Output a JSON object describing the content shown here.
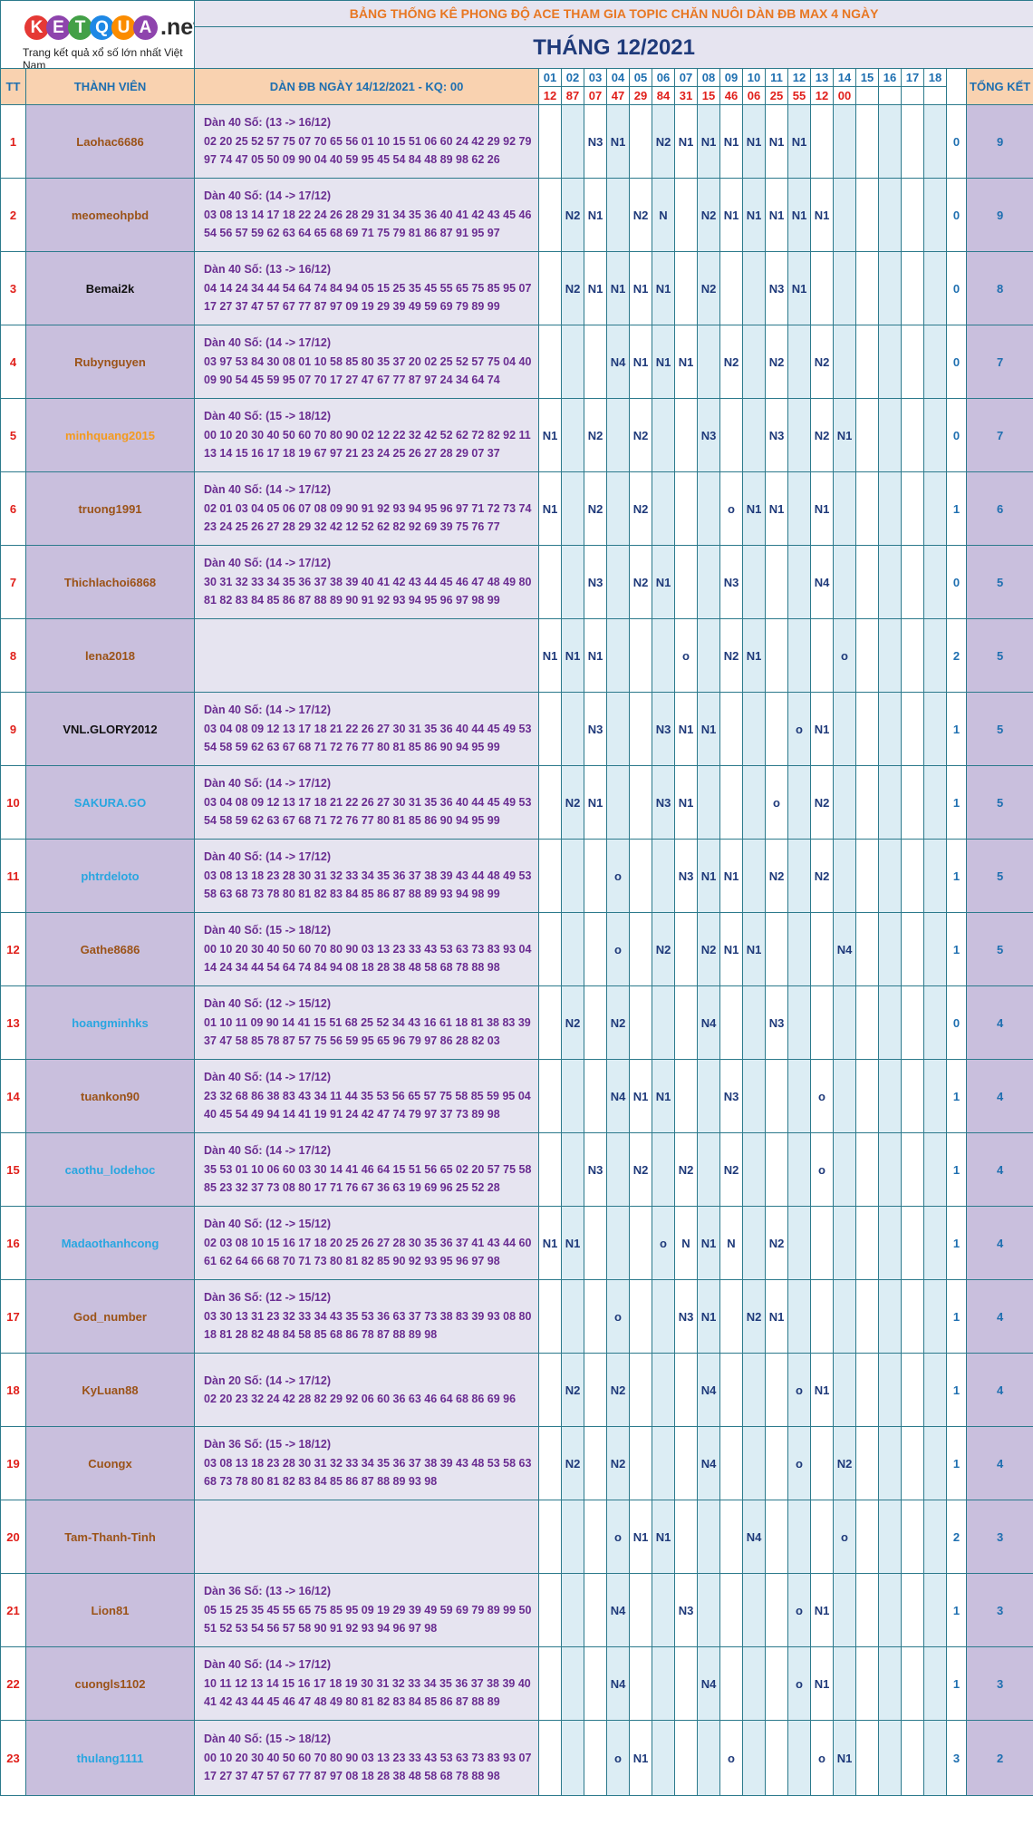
{
  "logo": {
    "text": "KETQUA",
    "suffix": ".net",
    "tagline": "Trang kết quả xổ số lớn nhất Việt Nam"
  },
  "header": {
    "title": "BẢNG THỐNG KÊ PHONG ĐỘ ACE THAM GIA TOPIC CHĂN NUÔI DÀN ĐB MAX 4 NGÀY",
    "month": "THÁNG 12/2021",
    "col_tt": "TT",
    "col_member": "THÀNH VIÊN",
    "col_dan": "DÀN ĐB NGÀY 14/12/2021 - KQ: 00",
    "col_total": "TỔNG KẾT"
  },
  "days": [
    "01",
    "02",
    "03",
    "04",
    "05",
    "06",
    "07",
    "08",
    "09",
    "10",
    "11",
    "12",
    "13",
    "14",
    "15",
    "16",
    "17",
    "18"
  ],
  "results": [
    "12",
    "87",
    "07",
    "47",
    "29",
    "84",
    "31",
    "15",
    "46",
    "06",
    "25",
    "55",
    "12",
    "00",
    "",
    "",
    "",
    ""
  ],
  "colors": {
    "name_brown": "#9b5318",
    "name_black": "#111111",
    "name_orange": "#f39a1e",
    "name_blue": "#29a6e0"
  },
  "rows": [
    {
      "tt": "1",
      "name": "Laohac6686",
      "color": "brown",
      "title": "Dàn 40 Số: (13 -> 16/12)",
      "line1": "02 20 25 52 57 75 07 70 65 56 01 10 15 51 06 60 24 42 29 92 79",
      "line2": "97 74 47 05 50 09 90 04 40 59 95 45 54 84 48 89 98 62 26",
      "cells": [
        "",
        "",
        "N3",
        "N1",
        "",
        "N2",
        "N1",
        "N1",
        "N1",
        "N1",
        "N1",
        "N1",
        "",
        "",
        "",
        "",
        "",
        ""
      ],
      "sum": "0",
      "total": "9"
    },
    {
      "tt": "2",
      "name": "meomeohpbd",
      "color": "brown",
      "title": "Dàn 40 Số: (14 -> 17/12)",
      "line1": "03 08 13 14 17 18 22 24 26 28 29 31 34 35 36 40 41 42 43 45 46",
      "line2": "54 56 57 59 62 63 64 65 68 69 71 75 79 81 86 87 91 95 97",
      "cells": [
        "",
        "N2",
        "N1",
        "",
        "N2",
        "N",
        "",
        "N2",
        "N1",
        "N1",
        "N1",
        "N1",
        "N1",
        "",
        "",
        "",
        "",
        ""
      ],
      "sum": "0",
      "total": "9"
    },
    {
      "tt": "3",
      "name": "Bemai2k",
      "color": "black",
      "title": "Dàn 40 Số: (13 -> 16/12)",
      "line1": "04 14 24 34 44 54 64 74 84 94 05 15 25 35 45 55 65 75 85 95 07",
      "line2": "17 27 37 47 57 67 77 87 97 09 19 29 39 49 59 69 79 89 99",
      "cells": [
        "",
        "N2",
        "N1",
        "N1",
        "N1",
        "N1",
        "",
        "N2",
        "",
        "",
        "N3",
        "N1",
        "",
        "",
        "",
        "",
        "",
        ""
      ],
      "sum": "0",
      "total": "8"
    },
    {
      "tt": "4",
      "name": "Rubynguyen",
      "color": "brown",
      "title": "Dàn 40 Số: (14 -> 17/12)",
      "line1": "03 97 53 84 30 08 01 10 58 85 80 35 37 20 02 25 52 57 75 04 40",
      "line2": "09 90 54 45 59 95 07 70 17 27 47 67 77 87 97 24 34 64 74",
      "cells": [
        "",
        "",
        "",
        "N4",
        "N1",
        "N1",
        "N1",
        "",
        "N2",
        "",
        "N2",
        "",
        "N2",
        "",
        "",
        "",
        "",
        ""
      ],
      "sum": "0",
      "total": "7"
    },
    {
      "tt": "5",
      "name": "minhquang2015",
      "color": "orange",
      "title": "Dàn 40 Số: (15 -> 18/12)",
      "line1": "00 10 20 30 40 50 60 70 80 90 02 12 22 32 42 52 62 72 82 92 11",
      "line2": "13 14 15 16 17 18 19 67 97 21 23 24 25 26 27 28 29 07 37",
      "cells": [
        "N1",
        "",
        "N2",
        "",
        "N2",
        "",
        "",
        "N3",
        "",
        "",
        "N3",
        "",
        "N2",
        "N1",
        "",
        "",
        "",
        ""
      ],
      "sum": "0",
      "total": "7"
    },
    {
      "tt": "6",
      "name": "truong1991",
      "color": "brown",
      "title": "Dàn 40 Số: (14 -> 17/12)",
      "line1": "02 01 03 04 05 06 07 08 09 90 91 92 93 94 95 96 97 71 72 73 74",
      "line2": "23 24 25 26 27 28 29 32 42 12 52 62 82 92 69 39 75 76 77",
      "cells": [
        "N1",
        "",
        "N2",
        "",
        "N2",
        "",
        "",
        "",
        "o",
        "N1",
        "N1",
        "",
        "N1",
        "",
        "",
        "",
        "",
        ""
      ],
      "sum": "1",
      "total": "6"
    },
    {
      "tt": "7",
      "name": "Thichlachoi6868",
      "color": "brown",
      "title": "Dàn 40 Số: (14 -> 17/12)",
      "line1": "30 31 32 33 34 35 36 37 38 39 40 41 42 43 44 45 46 47 48 49 80",
      "line2": "81 82 83 84 85 86 87 88 89 90 91 92 93 94 95 96 97 98 99",
      "cells": [
        "",
        "",
        "N3",
        "",
        "N2",
        "N1",
        "",
        "",
        "N3",
        "",
        "",
        "",
        "N4",
        "",
        "",
        "",
        "",
        ""
      ],
      "sum": "0",
      "total": "5"
    },
    {
      "tt": "8",
      "name": "lena2018",
      "color": "brown",
      "title": "",
      "line1": "",
      "line2": "",
      "cells": [
        "N1",
        "N1",
        "N1",
        "",
        "",
        "",
        "o",
        "",
        "N2",
        "N1",
        "",
        "",
        "",
        "o",
        "",
        "",
        "",
        ""
      ],
      "sum": "2",
      "total": "5"
    },
    {
      "tt": "9",
      "name": "VNL.GLORY2012",
      "color": "black",
      "title": "Dàn 40 Số: (14 -> 17/12)",
      "line1": "03 04 08 09 12 13 17 18 21 22 26 27 30 31 35 36 40 44 45 49 53",
      "line2": "54 58 59 62 63 67 68 71 72 76 77 80 81 85 86 90 94 95 99",
      "cells": [
        "",
        "",
        "N3",
        "",
        "",
        "N3",
        "N1",
        "N1",
        "",
        "",
        "",
        "o",
        "N1",
        "",
        "",
        "",
        "",
        ""
      ],
      "sum": "1",
      "total": "5"
    },
    {
      "tt": "10",
      "name": "SAKURA.GO",
      "color": "blue",
      "title": "Dàn 40 Số: (14 -> 17/12)",
      "line1": "03 04 08 09 12 13 17 18 21 22 26 27 30 31 35 36 40 44 45 49 53",
      "line2": "54 58 59 62 63 67 68 71 72 76 77 80 81 85 86 90 94 95 99",
      "cells": [
        "",
        "N2",
        "N1",
        "",
        "",
        "N3",
        "N1",
        "",
        "",
        "",
        "o",
        "",
        "N2",
        "",
        "",
        "",
        "",
        ""
      ],
      "sum": "1",
      "total": "5"
    },
    {
      "tt": "11",
      "name": "phtrdeloto",
      "color": "blue",
      "title": "Dàn 40 Số: (14 -> 17/12)",
      "line1": "03 08 13 18 23 28 30 31 32 33 34 35 36 37 38 39 43 44 48 49 53",
      "line2": "58 63 68 73 78 80 81 82 83 84 85 86 87 88 89 93 94 98 99",
      "cells": [
        "",
        "",
        "",
        "o",
        "",
        "",
        "N3",
        "N1",
        "N1",
        "",
        "N2",
        "",
        "N2",
        "",
        "",
        "",
        "",
        ""
      ],
      "sum": "1",
      "total": "5"
    },
    {
      "tt": "12",
      "name": "Gathe8686",
      "color": "brown",
      "title": "Dàn 40 Số: (15 -> 18/12)",
      "line1": "00 10 20 30 40 50 60 70 80 90 03 13 23 33 43 53 63 73 83 93 04",
      "line2": "14 24 34 44 54 64 74 84 94 08 18 28 38 48 58 68 78 88 98",
      "cells": [
        "",
        "",
        "",
        "o",
        "",
        "N2",
        "",
        "N2",
        "N1",
        "N1",
        "",
        "",
        "",
        "N4",
        "",
        "",
        "",
        ""
      ],
      "sum": "1",
      "total": "5"
    },
    {
      "tt": "13",
      "name": "hoangminhks",
      "color": "blue",
      "title": "Dàn 40 Số: (12 -> 15/12)",
      "line1": "01 10 11 09 90 14 41 15 51 68 25 52 34 43 16 61 18 81 38 83 39",
      "line2": "37 47 58 85 78 87 57 75 56 59 95 65 96 79 97 86 28 82 03",
      "cells": [
        "",
        "N2",
        "",
        "N2",
        "",
        "",
        "",
        "N4",
        "",
        "",
        "N3",
        "",
        "",
        "",
        "",
        "",
        "",
        ""
      ],
      "sum": "0",
      "total": "4"
    },
    {
      "tt": "14",
      "name": "tuankon90",
      "color": "brown",
      "title": "Dàn 40 Số: (14 -> 17/12)",
      "line1": "23 32 68 86 38 83 43 34 11 44 35 53 56 65 57 75 58 85 59 95 04",
      "line2": "40 45 54 49 94 14 41 19 91 24 42 47 74 79 97 37 73 89 98",
      "cells": [
        "",
        "",
        "",
        "N4",
        "N1",
        "N1",
        "",
        "",
        "N3",
        "",
        "",
        "",
        "o",
        "",
        "",
        "",
        "",
        ""
      ],
      "sum": "1",
      "total": "4"
    },
    {
      "tt": "15",
      "name": "caothu_lodehoc",
      "color": "blue",
      "title": "Dàn 40 Số: (14 -> 17/12)",
      "line1": "35 53 01 10 06 60 03 30 14 41 46 64 15 51 56 65 02 20 57 75 58",
      "line2": "85 23 32 37 73 08 80 17 71 76 67 36 63 19 69 96 25 52 28",
      "cells": [
        "",
        "",
        "N3",
        "",
        "N2",
        "",
        "N2",
        "",
        "N2",
        "",
        "",
        "",
        "o",
        "",
        "",
        "",
        "",
        ""
      ],
      "sum": "1",
      "total": "4"
    },
    {
      "tt": "16",
      "name": "Madaothanhcong",
      "color": "blue",
      "title": "Dàn 40 Số: (12 -> 15/12)",
      "line1": "02 03 08 10 15 16 17 18 20 25 26 27 28 30 35 36 37 41 43 44 60",
      "line2": "61 62 64 66 68 70 71 73 80 81 82 85 90 92 93 95 96 97 98",
      "cells": [
        "N1",
        "N1",
        "",
        "",
        "",
        "o",
        "N",
        "N1",
        "N",
        "",
        "N2",
        "",
        "",
        "",
        "",
        "",
        "",
        ""
      ],
      "sum": "1",
      "total": "4"
    },
    {
      "tt": "17",
      "name": "God_number",
      "color": "brown",
      "title": "Dàn 36 Số: (12 -> 15/12)",
      "line1": "03 30 13 31 23 32 33 34 43 35 53 36 63 37 73 38 83 39 93 08 80",
      "line2": "18 81 28 82 48 84 58 85 68 86 78 87 88 89 98",
      "cells": [
        "",
        "",
        "",
        "o",
        "",
        "",
        "N3",
        "N1",
        "",
        "N2",
        "N1",
        "",
        "",
        "",
        "",
        "",
        "",
        ""
      ],
      "sum": "1",
      "total": "4"
    },
    {
      "tt": "18",
      "name": "KyLuan88",
      "color": "brown",
      "title": "Dàn 20 Số: (14 -> 17/12)",
      "line1": "02 20 23 32 24 42 28 82 29 92 06 60 36 63 46 64 68 86 69 96",
      "line2": "",
      "cells": [
        "",
        "N2",
        "",
        "N2",
        "",
        "",
        "",
        "N4",
        "",
        "",
        "",
        "o",
        "N1",
        "",
        "",
        "",
        "",
        ""
      ],
      "sum": "1",
      "total": "4"
    },
    {
      "tt": "19",
      "name": "Cuongx",
      "color": "brown",
      "title": "Dàn 36 Số: (15 -> 18/12)",
      "line1": "03 08 13 18 23 28 30 31 32 33 34 35 36 37 38 39 43 48 53 58 63",
      "line2": "68 73 78 80 81 82 83 84 85 86 87 88 89 93 98",
      "cells": [
        "",
        "N2",
        "",
        "N2",
        "",
        "",
        "",
        "N4",
        "",
        "",
        "",
        "o",
        "",
        "N2",
        "",
        "",
        "",
        ""
      ],
      "sum": "1",
      "total": "4"
    },
    {
      "tt": "20",
      "name": "Tam-Thanh-Tinh",
      "color": "brown",
      "title": "",
      "line1": "",
      "line2": "",
      "cells": [
        "",
        "",
        "",
        "o",
        "N1",
        "N1",
        "",
        "",
        "",
        "N4",
        "",
        "",
        "",
        "o",
        "",
        "",
        "",
        ""
      ],
      "sum": "2",
      "total": "3"
    },
    {
      "tt": "21",
      "name": "Lion81",
      "color": "brown",
      "title": "Dàn 36 Số: (13 -> 16/12)",
      "line1": "05 15 25 35 45 55 65 75 85 95 09 19 29 39 49 59 69 79 89 99 50",
      "line2": "51 52 53 54 56 57 58 90 91 92 93 94 96 97 98",
      "cells": [
        "",
        "",
        "",
        "N4",
        "",
        "",
        "N3",
        "",
        "",
        "",
        "",
        "o",
        "N1",
        "",
        "",
        "",
        "",
        ""
      ],
      "sum": "1",
      "total": "3"
    },
    {
      "tt": "22",
      "name": "cuongls1102",
      "color": "brown",
      "title": "Dàn 40 Số: (14 -> 17/12)",
      "line1": "10 11 12 13 14 15 16 17 18 19 30 31 32 33 34 35 36 37 38 39 40",
      "line2": "41 42 43 44 45 46 47 48 49 80 81 82 83 84 85 86 87 88 89",
      "cells": [
        "",
        "",
        "",
        "N4",
        "",
        "",
        "",
        "N4",
        "",
        "",
        "",
        "o",
        "N1",
        "",
        "",
        "",
        "",
        ""
      ],
      "sum": "1",
      "total": "3"
    },
    {
      "tt": "23",
      "name": "thulang1111",
      "color": "blue",
      "title": "Dàn 40 Số: (15 -> 18/12)",
      "line1": "00 10 20 30 40 50 60 70 80 90 03 13 23 33 43 53 63 73 83 93 07",
      "line2": "17 27 37 47 57 67 77 87 97 08 18 28 38 48 58 68 78 88 98",
      "cells": [
        "",
        "",
        "",
        "o",
        "N1",
        "",
        "",
        "",
        "o",
        "",
        "",
        "",
        "o",
        "N1",
        "",
        "",
        "",
        ""
      ],
      "sum": "3",
      "total": "2"
    }
  ]
}
